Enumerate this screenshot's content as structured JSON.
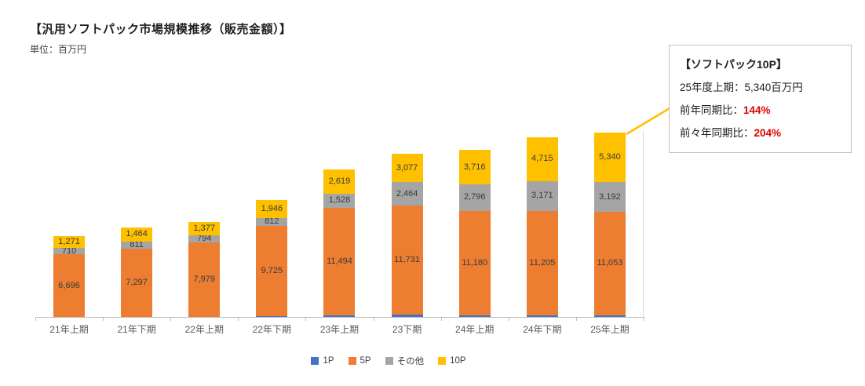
{
  "page": {
    "title": "【汎用ソフトパック市場規模推移（販売金額）】",
    "unit_label": "単位：百万円"
  },
  "chart_data": {
    "type": "bar",
    "stacked": true,
    "title": "汎用ソフトパック市場規模推移（販売金額）",
    "unit": "百万円",
    "categories": [
      "21年上期",
      "21年下期",
      "22年上期",
      "22年下期",
      "23年上期",
      "23下期",
      "24年上期",
      "24年下期",
      "25年上期"
    ],
    "series": [
      {
        "name": "1P",
        "color": "#4472C4",
        "values": [
          1,
          1,
          1,
          48,
          189,
          225,
          203,
          172,
          192
        ]
      },
      {
        "name": "5P",
        "color": "#ED7D31",
        "values": [
          6696,
          7297,
          7979,
          9725,
          11494,
          11731,
          11180,
          11205,
          11053
        ]
      },
      {
        "name": "その他",
        "color": "#A5A5A5",
        "values": [
          710,
          811,
          794,
          812,
          1528,
          2464,
          2796,
          3171,
          3192
        ]
      },
      {
        "name": "10P",
        "color": "#FFC000",
        "values": [
          1271,
          1464,
          1377,
          1946,
          2619,
          3077,
          3716,
          4715,
          5340
        ]
      }
    ],
    "ylim": [
      0,
      20000
    ],
    "grid": false,
    "legend_position": "bottom",
    "data_labels": true
  },
  "annotation": {
    "title": "【ソフトパック10P】",
    "lines": [
      {
        "text": "25年度上期：5,340百万円",
        "value": ""
      },
      {
        "text": "前年同期比：",
        "value": "144%"
      },
      {
        "text": "前々年同期比：",
        "value": "204%"
      }
    ],
    "value_color": "#E00000",
    "border_color": "#C9C2A8",
    "callout_color": "#FFC000"
  }
}
